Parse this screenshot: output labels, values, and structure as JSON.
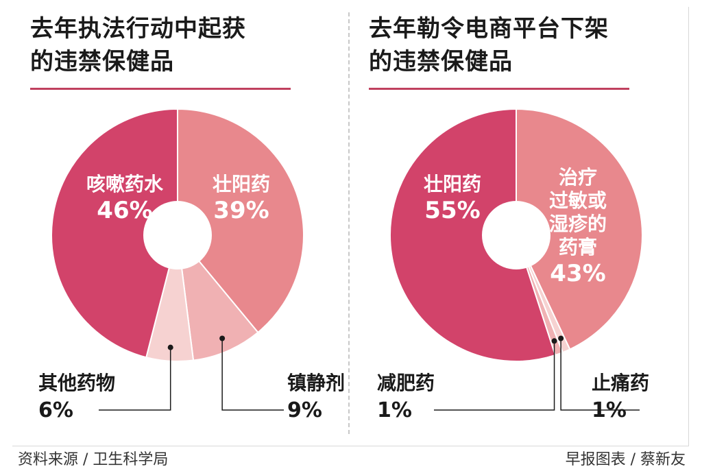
{
  "footer": {
    "source": "资料来源 / 卫生科学局",
    "credit": "早报图表 / 蔡新友"
  },
  "colors": {
    "rule": "#c0405e",
    "dark": "#d2436a",
    "mid": "#e8888d",
    "light": "#f0b1b3",
    "lighter": "#f6d2d1"
  },
  "chart_data": [
    {
      "type": "pie",
      "title": [
        "去年执法行动中起获",
        "的违禁保健品"
      ],
      "slices": [
        {
          "label": "壮阳药",
          "value": 39,
          "pct": "39%",
          "color": "#e8888d"
        },
        {
          "label": "镇静剂",
          "value": 9,
          "pct": "9%",
          "color": "#f0b1b3"
        },
        {
          "label": "其他药物",
          "value": 6,
          "pct": "6%",
          "color": "#f6d2d1"
        },
        {
          "label": "咳嗽药水",
          "value": 46,
          "pct": "46%",
          "color": "#d2436a"
        }
      ]
    },
    {
      "type": "pie",
      "title": [
        "去年勒令电商平台下架",
        "的违禁保健品"
      ],
      "slices": [
        {
          "label": "治疗过敏或湿疹的药膏",
          "label_lines": [
            "治疗",
            "过敏或",
            "湿疹的",
            "药膏"
          ],
          "value": 43,
          "pct": "43%",
          "color": "#e8888d"
        },
        {
          "label": "止痛药",
          "value": 1,
          "pct": "1%",
          "color": "#f6d2d1"
        },
        {
          "label": "减肥药",
          "value": 1,
          "pct": "1%",
          "color": "#f0b1b3"
        },
        {
          "label": "壮阳药",
          "value": 55,
          "pct": "55%",
          "color": "#d2436a"
        }
      ]
    }
  ]
}
